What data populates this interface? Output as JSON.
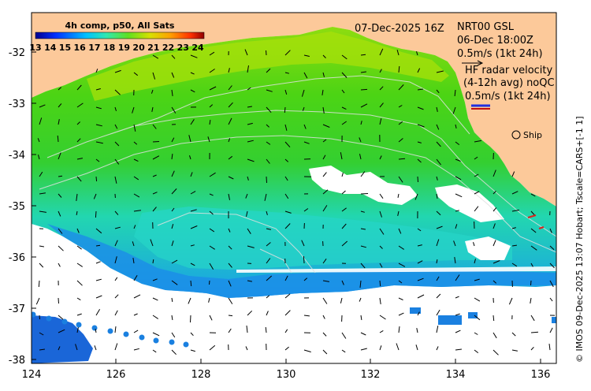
{
  "map": {
    "title_left": "4h comp, p50, All Sats",
    "date_label": "07-Dec-2025 16Z",
    "product": "NRT00 GSL",
    "product_time": "06-Dec 18:00Z",
    "arrow_scale_1": "0.5m/s (1kt 24h)",
    "hf_title": "HF radar velocity",
    "hf_avg": "(4-12h avg) noQC",
    "arrow_scale_2": "0.5m/s (1kt 24h)",
    "ship_label": "Ship",
    "credit": "© IMOS 09-Dec-2025 13:07 Hobart; Tscale=CARS+[-1 1]",
    "colorbar_ticks": [
      "13",
      "14",
      "15",
      "16",
      "17",
      "18",
      "19",
      "20",
      "21",
      "22",
      "23",
      "24"
    ],
    "x_ticks": [
      "124",
      "126",
      "128",
      "130",
      "132",
      "134",
      "136"
    ],
    "y_ticks": [
      "-32",
      "-33",
      "-34",
      "-35",
      "-36",
      "-37",
      "-38"
    ],
    "colors": {
      "land": "#fcc99a",
      "ocean_green": "#3ccf14",
      "ocean_yellowgreen": "#a8e00a",
      "ocean_cyan": "#20d8c0",
      "ocean_blue": "#1c7ce8",
      "hf_arrow": "#e0201c",
      "hf_scale": "#2030e0"
    }
  }
}
